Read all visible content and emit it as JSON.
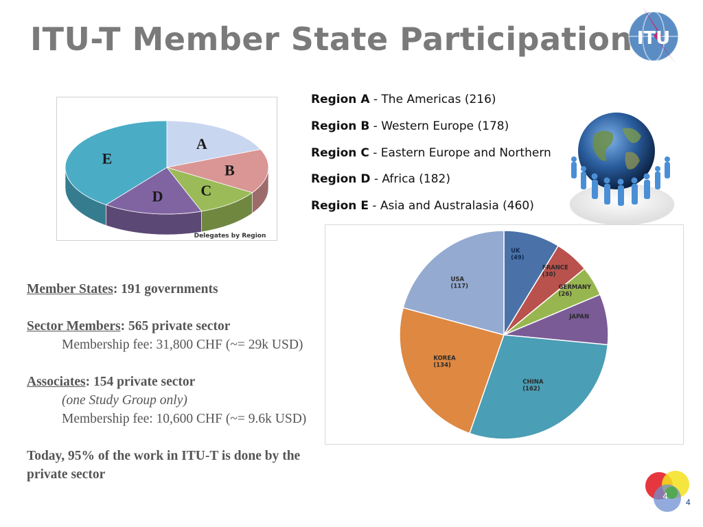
{
  "slide": {
    "title": "ITU-T Member State Participation",
    "page_number": "4",
    "logo_text": "ITU",
    "footer_logo_number": "4"
  },
  "region_legend": [
    {
      "name": "Region A",
      "desc": " - The Americas (216)"
    },
    {
      "name": "Region B",
      "desc": " - Western Europe (178)"
    },
    {
      "name": "Region C",
      "desc": " - Eastern Europe and Northern"
    },
    {
      "name": "Region D",
      "desc": " - Africa (182)"
    },
    {
      "name": "Region E",
      "desc": " - Asia and Australasia (460)"
    }
  ],
  "members": {
    "member_states_label": "Member States",
    "member_states_value": ": 191 governments",
    "sector_members_label": "Sector Members",
    "sector_members_value": ": 565 private sector",
    "sector_fee": "Membership fee: 31,800 CHF (~= 29k USD)",
    "associates_label": "Associates",
    "associates_value": ": 154 private sector",
    "associates_note": "(one Study Group only)",
    "associates_fee": "Membership fee: 10,600 CHF (~= 9.6k USD)",
    "today_line1": "Today, 95% of the work in ITU-T is done by the",
    "today_line2": "private sector"
  },
  "chart_data": [
    {
      "type": "pie",
      "title": "Delegates by Region",
      "categories": [
        "A",
        "B",
        "C",
        "D",
        "E"
      ],
      "values": [
        216,
        178,
        120,
        182,
        460
      ],
      "colors": [
        "#c9d6f0",
        "#d99694",
        "#9bbb59",
        "#8064a2",
        "#4bacc6"
      ]
    },
    {
      "type": "pie",
      "categories": [
        "UK",
        "FRANCE",
        "GERMANY",
        "JAPAN",
        "CHINA",
        "KOREA",
        "USA"
      ],
      "labels": [
        "UK\n(49)",
        "FRANCE\n(30)",
        "GERMANY\n(26)",
        "JAPAN",
        "CHINA\n(162)",
        "KOREA\n(134)",
        "USA\n(117)"
      ],
      "values": [
        49,
        30,
        26,
        44,
        162,
        134,
        117
      ],
      "colors": [
        "#4a72a8",
        "#b9514d",
        "#98b64f",
        "#7a5b96",
        "#4a9eb5",
        "#de8842",
        "#94aad0"
      ]
    }
  ]
}
